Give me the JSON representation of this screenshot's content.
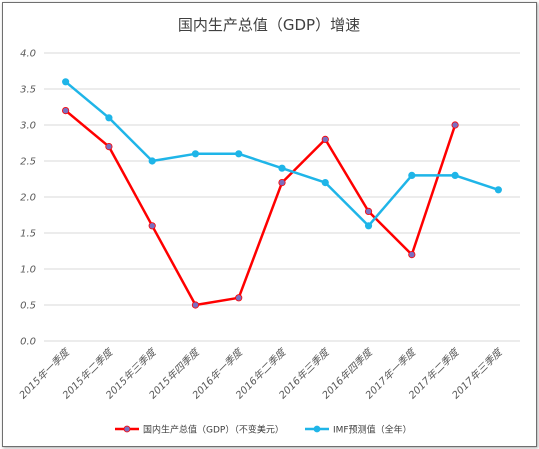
{
  "chart_data": {
    "type": "line",
    "title": "国内生产总值（GDP）增速",
    "categories": [
      "2015年一季度",
      "2015年二季度",
      "2015年三季度",
      "2015年四季度",
      "2016年一季度",
      "2016年二季度",
      "2016年三季度",
      "2016年四季度",
      "2017年一季度",
      "2017年二季度",
      "2017年三季度"
    ],
    "y_ticks": [
      "0.0",
      "0.5",
      "1.0",
      "1.5",
      "2.0",
      "2.5",
      "3.0",
      "3.5",
      "4.0"
    ],
    "ylim": [
      0,
      4
    ],
    "grid": true,
    "legend_position": "bottom",
    "series": [
      {
        "name": "国内生产总值（GDP）（不变美元）",
        "color": "#ff0000",
        "marker_color": "#7b6fbf",
        "values": [
          3.2,
          2.7,
          1.6,
          0.5,
          0.6,
          2.2,
          2.8,
          1.8,
          1.2,
          3.0,
          null
        ]
      },
      {
        "name": "IMF预测值（全年）",
        "color": "#1fb5e8",
        "marker_color": "#1fb5e8",
        "values": [
          3.6,
          3.1,
          2.5,
          2.6,
          2.6,
          2.4,
          2.2,
          1.6,
          2.3,
          2.3,
          2.1
        ]
      }
    ]
  }
}
